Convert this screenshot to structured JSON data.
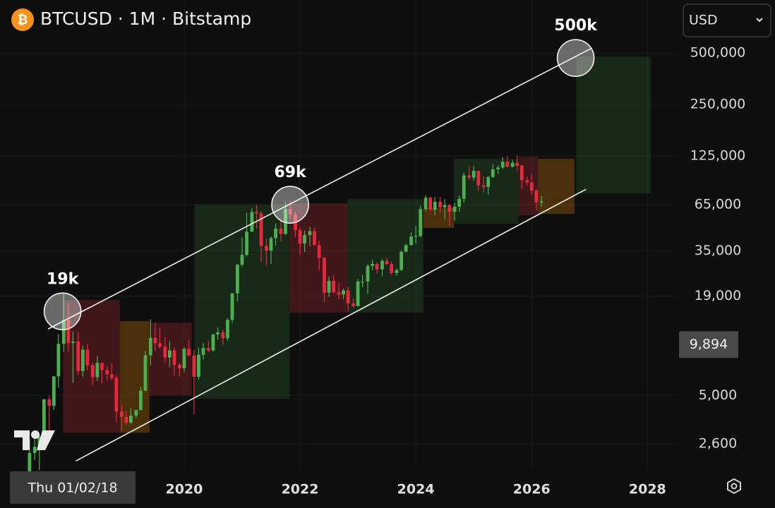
{
  "chart_data": {
    "type": "candlestick",
    "title": "BTCUSD · 1M · Bitstamp",
    "currency": "USD",
    "log_scale": true,
    "grid": true,
    "up_color": "#4caf50",
    "down_color": "#e8283c",
    "xlim": [
      2016.82,
      2028.52
    ],
    "xticks": [
      2020,
      2022,
      2024,
      2026,
      2028
    ],
    "ylim": [
      1850,
      1020000
    ],
    "yticks": [
      {
        "value": 2600,
        "label": "2,600"
      },
      {
        "value": 5000,
        "label": "5,000"
      },
      {
        "value": 19000,
        "label": "19,000"
      },
      {
        "value": 35000,
        "label": "35,000"
      },
      {
        "value": 65000,
        "label": "65,000"
      },
      {
        "value": 125000,
        "label": "125,000"
      },
      {
        "value": 250000,
        "label": "250,000"
      },
      {
        "value": 500000,
        "label": "500,000"
      }
    ],
    "crosshair_x_label": "Thu 01/02/18",
    "crosshair_price": {
      "value": 9894,
      "label": "9,894"
    },
    "x": [
      2017.33,
      2017.42,
      2017.5,
      2017.58,
      2017.67,
      2017.75,
      2017.83,
      2017.92,
      2018,
      2018.08,
      2018.17,
      2018.25,
      2018.33,
      2018.42,
      2018.5,
      2018.58,
      2018.67,
      2018.75,
      2018.83,
      2018.92,
      2019,
      2019.08,
      2019.17,
      2019.25,
      2019.33,
      2019.42,
      2019.5,
      2019.58,
      2019.67,
      2019.75,
      2019.83,
      2019.92,
      2020,
      2020.08,
      2020.17,
      2020.25,
      2020.33,
      2020.42,
      2020.5,
      2020.58,
      2020.67,
      2020.75,
      2020.83,
      2020.92,
      2021,
      2021.08,
      2021.17,
      2021.25,
      2021.33,
      2021.42,
      2021.5,
      2021.58,
      2021.67,
      2021.75,
      2021.83,
      2021.92,
      2022,
      2022.08,
      2022.17,
      2022.25,
      2022.33,
      2022.42,
      2022.5,
      2022.58,
      2022.67,
      2022.75,
      2022.83,
      2022.92,
      2023,
      2023.08,
      2023.17,
      2023.25,
      2023.33,
      2023.42,
      2023.5,
      2023.58,
      2023.67,
      2023.75,
      2023.83,
      2023.92,
      2024,
      2024.08,
      2024.17,
      2024.25,
      2024.33,
      2024.42,
      2024.5,
      2024.58,
      2024.67,
      2024.75,
      2024.83,
      2024.92,
      2025,
      2025.08,
      2025.17,
      2025.25,
      2025.33,
      2025.42,
      2025.5,
      2025.58,
      2025.67,
      2025.75,
      2025.83,
      2025.92,
      2026,
      2026.08,
      2026.17
    ],
    "open": [
      1350,
      2300,
      2500,
      2870,
      4730,
      4340,
      6450,
      10000,
      13800,
      10100,
      10300,
      6930,
      9240,
      7500,
      6390,
      7730,
      7030,
      6630,
      6310,
      4020,
      3740,
      3460,
      3800,
      4100,
      5320,
      8560,
      10820,
      10080,
      9600,
      8300,
      9150,
      7550,
      7190,
      9350,
      8540,
      6410,
      8630,
      9450,
      9140,
      11350,
      11650,
      10780,
      13800,
      19700,
      28950,
      33100,
      45150,
      58800,
      57700,
      37300,
      35000,
      41500,
      47100,
      43800,
      61300,
      57000,
      46200,
      38500,
      43200,
      45500,
      37700,
      31800,
      19900,
      23300,
      20000,
      19400,
      20500,
      17200,
      16600,
      23100,
      23100,
      28500,
      29300,
      27200,
      30500,
      29200,
      25900,
      27000,
      34500,
      37700,
      42300,
      42600,
      61200,
      71300,
      60700,
      67500,
      62700,
      64600,
      59000,
      63300,
      70300,
      96400,
      93400,
      102400,
      84300,
      82500,
      94200,
      104600,
      107100,
      115700,
      108200,
      114000,
      109600,
      90400,
      87500,
      78600,
      67000
    ],
    "high": [
      2760,
      3000,
      2950,
      4750,
      4980,
      6470,
      11400,
      19666,
      17200,
      11790,
      11700,
      9760,
      9990,
      7780,
      8490,
      7760,
      7420,
      7670,
      6570,
      4420,
      4070,
      4200,
      4140,
      5620,
      9090,
      13880,
      13200,
      12320,
      10950,
      10370,
      9510,
      7750,
      9580,
      10500,
      9200,
      9460,
      10080,
      10380,
      11440,
      12470,
      12070,
      14100,
      19900,
      29300,
      41950,
      58350,
      61780,
      64900,
      59600,
      41300,
      42400,
      50500,
      52900,
      67000,
      69000,
      59000,
      47900,
      45800,
      48200,
      47400,
      40000,
      31900,
      24700,
      25200,
      22800,
      21000,
      21500,
      18400,
      23900,
      25300,
      29200,
      31000,
      29800,
      31400,
      31800,
      30200,
      27500,
      35200,
      38400,
      44700,
      48900,
      63900,
      73800,
      72800,
      72000,
      72000,
      70000,
      65600,
      66500,
      73600,
      99800,
      108300,
      109300,
      102600,
      95000,
      95800,
      111900,
      110600,
      123200,
      124500,
      117900,
      126200,
      111000,
      94600,
      97900,
      80000,
      73000
    ],
    "low": [
      1350,
      2100,
      1830,
      2700,
      2970,
      4110,
      5550,
      9000,
      9000,
      5900,
      6600,
      6430,
      7000,
      5750,
      6070,
      5880,
      6100,
      6100,
      3500,
      3120,
      3350,
      3400,
      3700,
      4080,
      5310,
      7480,
      9050,
      9380,
      7710,
      7300,
      6520,
      6430,
      6850,
      8450,
      3860,
      6150,
      8100,
      8900,
      8980,
      10560,
      9880,
      10370,
      13220,
      17600,
      28130,
      32300,
      45000,
      47000,
      30000,
      28800,
      29300,
      37400,
      39600,
      43200,
      53300,
      42000,
      32950,
      34300,
      37200,
      37600,
      26700,
      17600,
      18800,
      19600,
      18200,
      18200,
      15500,
      16300,
      16500,
      21400,
      19600,
      26900,
      25800,
      24800,
      28900,
      25300,
      24900,
      26600,
      34100,
      37600,
      38500,
      41900,
      59300,
      59600,
      56600,
      58400,
      53500,
      49000,
      52600,
      58900,
      66800,
      90500,
      89200,
      78200,
      76600,
      74400,
      93300,
      98200,
      105100,
      107300,
      107300,
      102000,
      80500,
      84400,
      74500,
      60000,
      63000
    ],
    "close": [
      2300,
      2500,
      2870,
      4730,
      4340,
      6450,
      10000,
      13800,
      10100,
      10300,
      6930,
      9240,
      7500,
      6390,
      7730,
      7030,
      6630,
      6310,
      4020,
      3740,
      3460,
      3800,
      4100,
      5320,
      8560,
      10820,
      10080,
      9600,
      8300,
      9150,
      7550,
      7190,
      9350,
      8540,
      6410,
      8630,
      9450,
      9140,
      11350,
      11650,
      10780,
      13800,
      19700,
      28950,
      33100,
      45150,
      58800,
      57700,
      37300,
      35000,
      41500,
      47100,
      43800,
      61300,
      57000,
      46200,
      38500,
      43200,
      45500,
      37700,
      31800,
      19900,
      23300,
      20000,
      19400,
      20500,
      17200,
      16600,
      23100,
      23100,
      28500,
      29300,
      27200,
      30500,
      29200,
      25900,
      27000,
      34500,
      37700,
      42300,
      42600,
      61200,
      71300,
      60700,
      67500,
      62700,
      64600,
      59000,
      63300,
      70300,
      96400,
      93400,
      102400,
      84300,
      82500,
      94200,
      104600,
      107100,
      115700,
      108200,
      114000,
      109600,
      90400,
      87500,
      78600,
      67000,
      68000
    ],
    "boxes": [
      {
        "x0": 2017.91,
        "x1": 2018.89,
        "y0": 3023,
        "y1": 18010,
        "color": "rgba(242,54,69,0.22)"
      },
      {
        "x0": 2018.89,
        "x1": 2019.4,
        "y0": 3023,
        "y1": 13550,
        "color": "rgba(255,152,0,0.25)"
      },
      {
        "x0": 2019.4,
        "x1": 2020.13,
        "y0": 5000,
        "y1": 13300,
        "color": "rgba(242,54,69,0.22)"
      },
      {
        "x0": 2020.18,
        "x1": 2021.82,
        "y0": 4770,
        "y1": 64900,
        "color": "rgba(76,175,80,0.16)"
      },
      {
        "x0": 2021.82,
        "x1": 2022.82,
        "y0": 15200,
        "y1": 66100,
        "color": "rgba(242,54,69,0.22)"
      },
      {
        "x0": 2022.82,
        "x1": 2024.13,
        "y0": 15200,
        "y1": 70000,
        "color": "rgba(76,175,80,0.16)"
      },
      {
        "x0": 2024.13,
        "x1": 2024.66,
        "y0": 47500,
        "y1": 62000,
        "color": "rgba(255,152,0,0.25)"
      },
      {
        "x0": 2024.66,
        "x1": 2025.78,
        "y0": 50250,
        "y1": 120400,
        "color": "rgba(76,175,80,0.16)"
      },
      {
        "x0": 2025.78,
        "x1": 2026.11,
        "y0": 56250,
        "y1": 123800,
        "color": "rgba(242,54,69,0.22)"
      },
      {
        "x0": 2026.11,
        "x1": 2026.74,
        "y0": 57400,
        "y1": 120400,
        "color": "rgba(255,152,0,0.25)"
      },
      {
        "x0": 2026.77,
        "x1": 2028.06,
        "y0": 75500,
        "y1": 476600,
        "color": "rgba(76,175,80,0.16)"
      }
    ],
    "trend_lines": [
      {
        "x": [
          2017.65,
          2027.04
        ],
        "y": [
          12200,
          534000
        ]
      },
      {
        "x": [
          2018.13,
          2026.94
        ],
        "y": [
          2067,
          80000
        ]
      }
    ],
    "annotations": [
      {
        "text": "19k",
        "x": 2017.9,
        "y": 15470
      },
      {
        "text": "69k",
        "x": 2021.83,
        "y": 64900
      },
      {
        "text": "500k",
        "x": 2026.76,
        "y": 467700
      }
    ]
  }
}
